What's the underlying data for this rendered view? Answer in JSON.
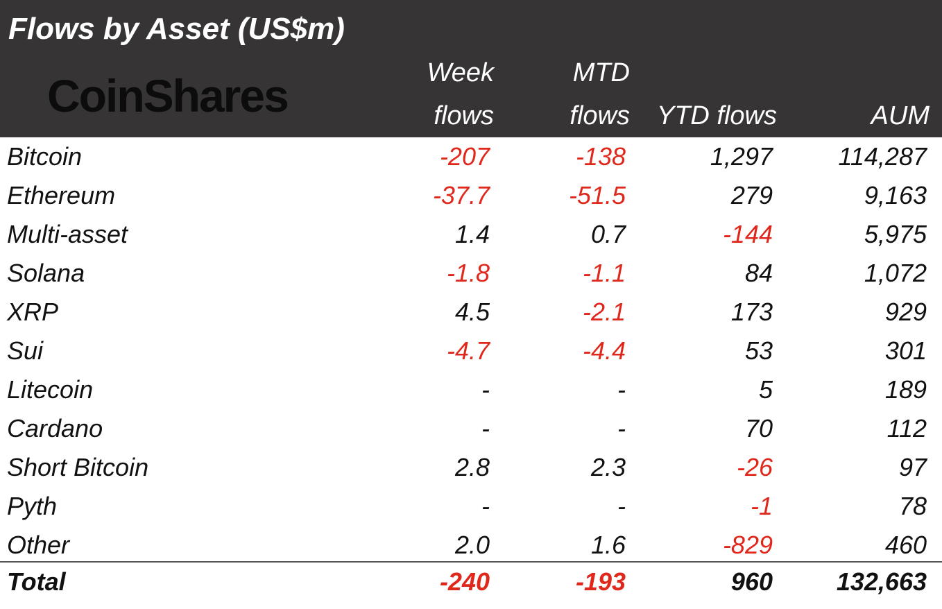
{
  "title": "Flows by Asset (US$m)",
  "logo_text": "CoinShares",
  "colors": {
    "header_bg": "#363434",
    "header_text": "#ffffff",
    "negative": "#e0271c",
    "positive": "#111111"
  },
  "columns": {
    "week": [
      "Week",
      "flows"
    ],
    "mtd": [
      "MTD",
      "flows"
    ],
    "ytd": "YTD flows",
    "aum": "AUM"
  },
  "chart_data": {
    "type": "table",
    "title": "Flows by Asset (US$m)",
    "columns": [
      "Week flows",
      "MTD flows",
      "YTD flows",
      "AUM"
    ],
    "rows": [
      {
        "asset": "Bitcoin",
        "week": "-207",
        "mtd": "-138",
        "ytd": "1,297",
        "aum": "114,287"
      },
      {
        "asset": "Ethereum",
        "week": "-37.7",
        "mtd": "-51.5",
        "ytd": "279",
        "aum": "9,163"
      },
      {
        "asset": "Multi-asset",
        "week": "1.4",
        "mtd": "0.7",
        "ytd": "-144",
        "aum": "5,975"
      },
      {
        "asset": "Solana",
        "week": "-1.8",
        "mtd": "-1.1",
        "ytd": "84",
        "aum": "1,072"
      },
      {
        "asset": "XRP",
        "week": "4.5",
        "mtd": "-2.1",
        "ytd": "173",
        "aum": "929"
      },
      {
        "asset": "Sui",
        "week": "-4.7",
        "mtd": "-4.4",
        "ytd": "53",
        "aum": "301"
      },
      {
        "asset": "Litecoin",
        "week": "-",
        "mtd": "-",
        "ytd": "5",
        "aum": "189"
      },
      {
        "asset": "Cardano",
        "week": "-",
        "mtd": "-",
        "ytd": "70",
        "aum": "112"
      },
      {
        "asset": "Short Bitcoin",
        "week": "2.8",
        "mtd": "2.3",
        "ytd": "-26",
        "aum": "97"
      },
      {
        "asset": "Pyth",
        "week": "-",
        "mtd": "-",
        "ytd": "-1",
        "aum": "78"
      },
      {
        "asset": "Other",
        "week": "2.0",
        "mtd": "1.6",
        "ytd": "-829",
        "aum": "460"
      }
    ],
    "total": {
      "asset": "Total",
      "week": "-240",
      "mtd": "-193",
      "ytd": "960",
      "aum": "132,663"
    }
  }
}
